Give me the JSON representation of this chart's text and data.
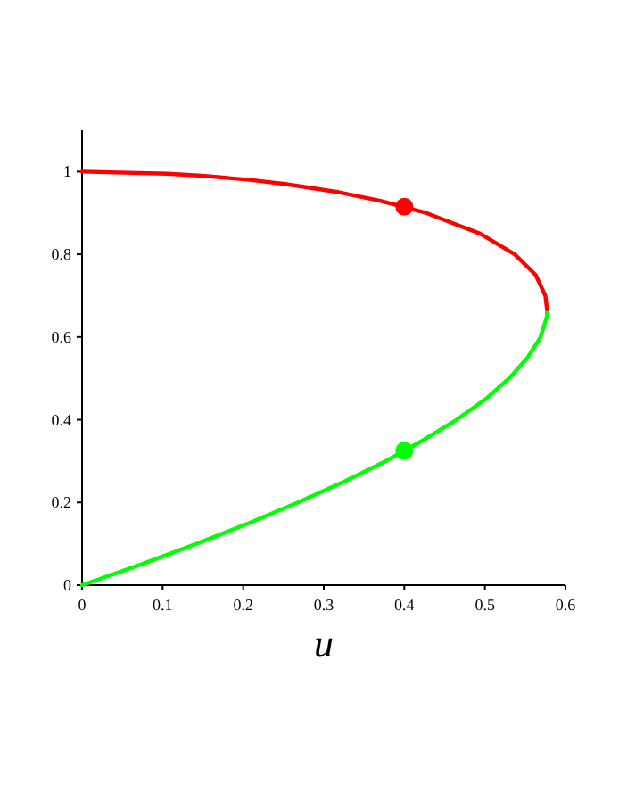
{
  "chart_data": {
    "type": "line",
    "xlabel": "u",
    "xlim": [
      0,
      0.6
    ],
    "ylim": [
      0,
      1.1
    ],
    "xticks": [
      0,
      0.1,
      0.2,
      0.3,
      0.4,
      0.5,
      0.6
    ],
    "yticks": [
      0,
      0.2,
      0.4,
      0.6,
      0.8,
      1
    ],
    "grid": false,
    "line_style": "solid",
    "series": [
      {
        "color": "#00ff00",
        "marker": "none",
        "x": [
          0,
          0.073,
          0.142,
          0.207,
          0.268,
          0.325,
          0.377,
          0.423,
          0.465,
          0.501,
          0.53,
          0.553,
          0.569,
          0.577,
          0.577
        ],
        "values": [
          0,
          0.05,
          0.1,
          0.15,
          0.2,
          0.25,
          0.3,
          0.35,
          0.4,
          0.45,
          0.5,
          0.55,
          0.6,
          0.65,
          0.667
        ]
      },
      {
        "color": "#ff0000",
        "marker": "none",
        "x": [
          0.577,
          0.575,
          0.563,
          0.537,
          0.494,
          0.427,
          0.369,
          0.319,
          0.252,
          0.208,
          0.149,
          0.106,
          0
        ],
        "values": [
          0.667,
          0.7,
          0.75,
          0.8,
          0.85,
          0.9,
          0.93,
          0.95,
          0.97,
          0.98,
          0.99,
          0.995,
          1
        ]
      },
      {
        "type": "scatter",
        "color": "#ff0000",
        "marker": "circle",
        "x": [
          0.4
        ],
        "values": [
          0.915
        ]
      },
      {
        "type": "scatter",
        "color": "#00ff00",
        "marker": "circle",
        "x": [
          0.4
        ],
        "values": [
          0.325
        ]
      }
    ]
  }
}
